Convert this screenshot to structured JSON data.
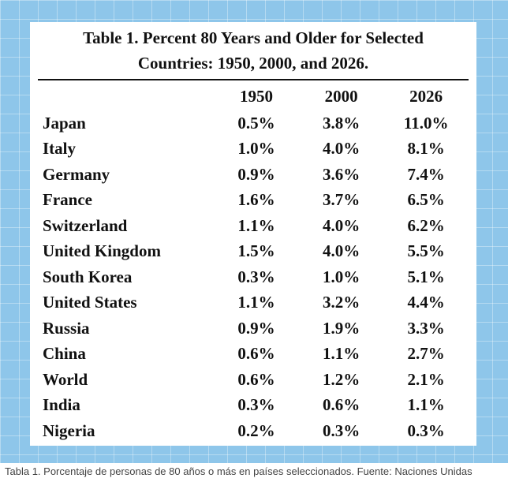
{
  "table": {
    "title_line1": "Table 1. Percent 80 Years and Older for Selected",
    "title_line2": "Countries: 1950, 2000, and 2026.",
    "headers": [
      "",
      "1950",
      "2000",
      "2026"
    ],
    "rows": [
      {
        "country": "Japan",
        "y1950": "0.5%",
        "y2000": "3.8%",
        "y2026": "11.0%"
      },
      {
        "country": "Italy",
        "y1950": "1.0%",
        "y2000": "4.0%",
        "y2026": "8.1%"
      },
      {
        "country": "Germany",
        "y1950": "0.9%",
        "y2000": "3.6%",
        "y2026": "7.4%"
      },
      {
        "country": "France",
        "y1950": "1.6%",
        "y2000": "3.7%",
        "y2026": "6.5%"
      },
      {
        "country": "Switzerland",
        "y1950": "1.1%",
        "y2000": "4.0%",
        "y2026": "6.2%"
      },
      {
        "country": "United Kingdom",
        "y1950": "1.5%",
        "y2000": "4.0%",
        "y2026": "5.5%"
      },
      {
        "country": "South Korea",
        "y1950": "0.3%",
        "y2000": "1.0%",
        "y2026": "5.1%"
      },
      {
        "country": "United States",
        "y1950": "1.1%",
        "y2000": "3.2%",
        "y2026": "4.4%"
      },
      {
        "country": "Russia",
        "y1950": "0.9%",
        "y2000": "1.9%",
        "y2026": "3.3%"
      },
      {
        "country": "China",
        "y1950": "0.6%",
        "y2000": "1.1%",
        "y2026": "2.7%"
      },
      {
        "country": "World",
        "y1950": "0.6%",
        "y2000": "1.2%",
        "y2026": "2.1%"
      },
      {
        "country": "India",
        "y1950": "0.3%",
        "y2000": "0.6%",
        "y2026": "1.1%"
      },
      {
        "country": "Nigeria",
        "y1950": "0.2%",
        "y2000": "0.3%",
        "y2026": "0.3%"
      }
    ]
  },
  "caption": "Tabla 1. Porcentaje de personas de 80 años o más en países seleccionados. Fuente: Naciones Unidas",
  "colors": {
    "frame_blue": "#8ec6ea",
    "background": "#ffffff",
    "text": "#111111"
  }
}
